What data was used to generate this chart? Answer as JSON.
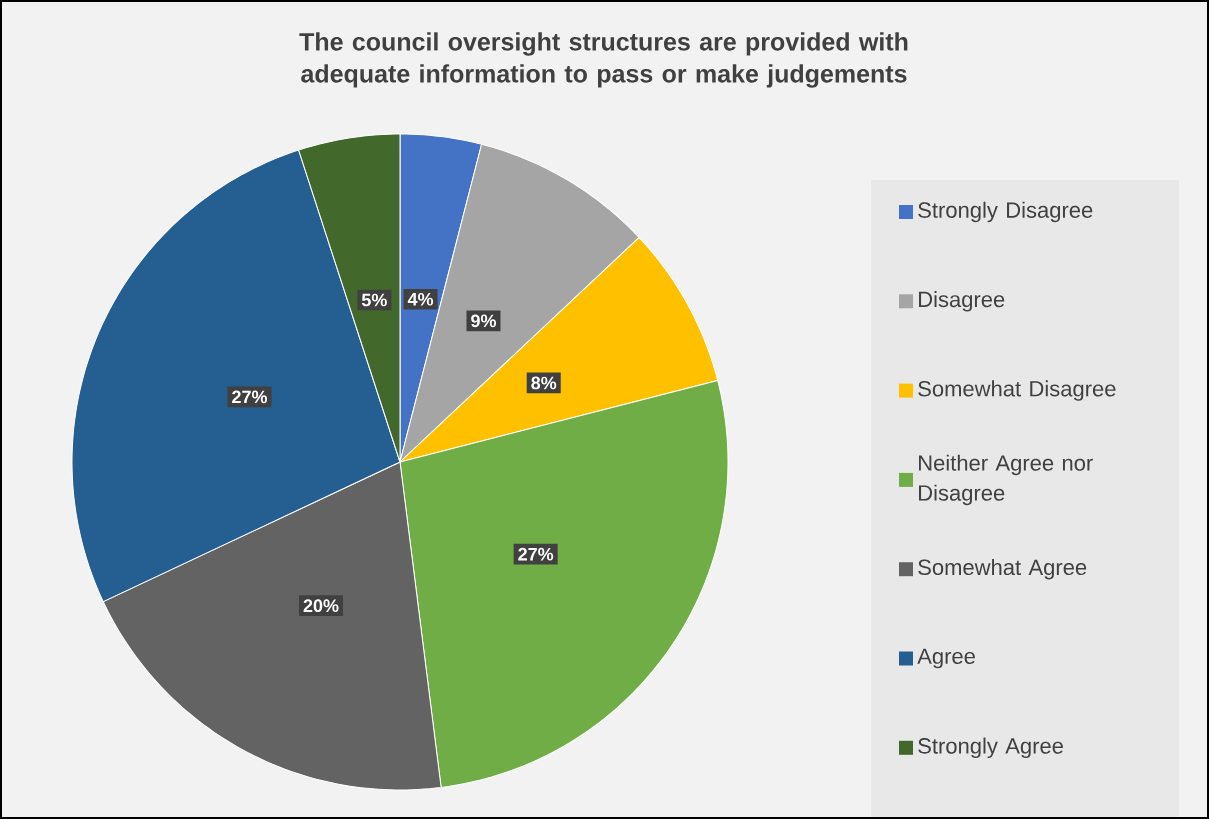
{
  "chart_data": {
    "type": "pie",
    "title": "The council oversight structures are provided with adequate information to pass or make judgements",
    "categories": [
      "Strongly Disagree",
      "Disagree",
      "Somewhat Disagree",
      "Neither Agree nor Disagree",
      "Somewhat Agree",
      "Agree",
      "Strongly Agree"
    ],
    "values": [
      4,
      9,
      8,
      27,
      20,
      27,
      5
    ],
    "colors": [
      "#4472c4",
      "#a5a5a5",
      "#ffc000",
      "#70ad47",
      "#636363",
      "#255e91",
      "#43682b"
    ],
    "value_labels": [
      "4%",
      "9%",
      "8%",
      "27%",
      "20%",
      "27%",
      "5%"
    ],
    "legend": "right"
  }
}
